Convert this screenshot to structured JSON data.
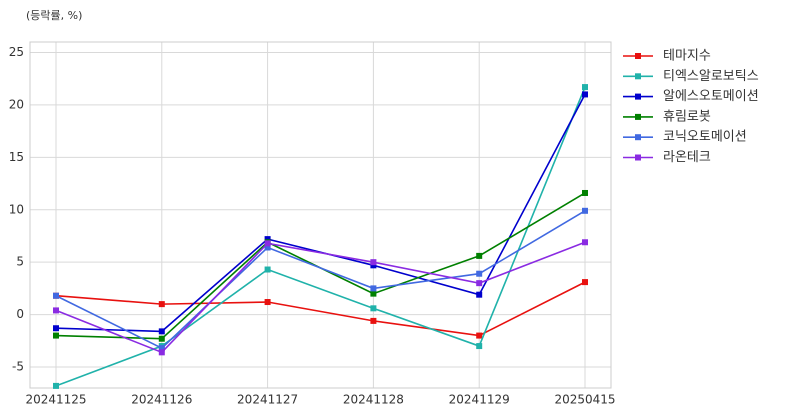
{
  "chart_data": {
    "type": "line",
    "y_label": "(등락률, %)",
    "categories": [
      "20241125",
      "20241126",
      "20241127",
      "20241128",
      "20241129",
      "20250415"
    ],
    "series": [
      {
        "name": "테마지수",
        "color": "#e8110f",
        "values": [
          1.8,
          1.0,
          1.2,
          -0.6,
          -2.0,
          3.1
        ]
      },
      {
        "name": "티엑스알로보틱스",
        "color": "#20b2aa",
        "values": [
          -6.8,
          -3.0,
          4.3,
          0.6,
          -3.0,
          21.7
        ]
      },
      {
        "name": "알에스오토메이션",
        "color": "#0000cd",
        "values": [
          -1.3,
          -1.6,
          7.2,
          4.7,
          1.9,
          21.0
        ]
      },
      {
        "name": "휴림로봇",
        "color": "#008000",
        "values": [
          -2.0,
          -2.3,
          6.9,
          2.0,
          5.6,
          11.6
        ]
      },
      {
        "name": "코닉오토메이션",
        "color": "#4169e1",
        "values": [
          1.8,
          -3.2,
          6.4,
          2.5,
          3.9,
          9.9
        ]
      },
      {
        "name": "라온테크",
        "color": "#8a2be2",
        "values": [
          0.4,
          -3.6,
          6.8,
          5.0,
          3.0,
          6.9
        ]
      }
    ],
    "ylim": [
      -7,
      26
    ],
    "yticks": [
      -5,
      0,
      5,
      10,
      15,
      20,
      25
    ],
    "grid": true,
    "legend": "outside-right"
  }
}
